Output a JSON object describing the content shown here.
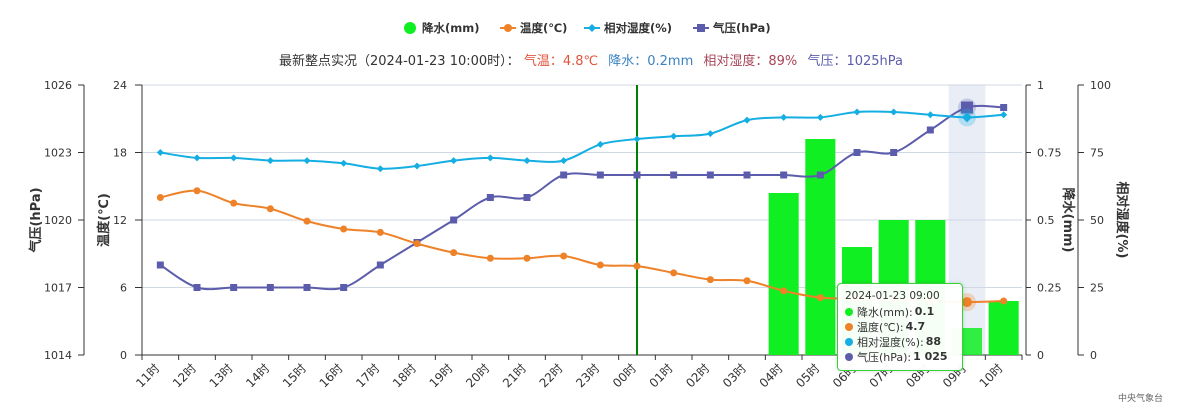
{
  "legend": [
    {
      "label": "降水(mm)",
      "color": "#10ef22",
      "icon": "circle"
    },
    {
      "label": "温度(℃)",
      "color": "#ee8229",
      "icon": "line-circle"
    },
    {
      "label": "相对湿度(%)",
      "color": "#15aee3",
      "icon": "line-diamond"
    },
    {
      "label": "气压(hPa)",
      "color": "#5c5cac",
      "icon": "line-square"
    }
  ],
  "subtitle": {
    "prefix": "最新整点实况（2024-01-23 10:00时）：",
    "temp": "气温：4.8℃",
    "precip": "降水：0.2mm",
    "humidity": "相对湿度：89%",
    "pressure": "气压：1025hPa"
  },
  "colors": {
    "precip": "#10ef22",
    "temp": "#ee8229",
    "humidity": "#15aee3",
    "pressure": "#5c5cac",
    "subtitle_temp": "#e0543c",
    "subtitle_precip": "#3a82c0",
    "subtitle_humidity": "#a84458",
    "subtitle_pressure": "#5c5cac",
    "now_line": "#008000",
    "highlight_band": "#e8edf6"
  },
  "axes": {
    "pressure_label": "气压(hPa)",
    "temp_label": "温度(℃)",
    "precip_label": "降水(mm)",
    "humidity_label": "相对湿度(%)",
    "pressure_ticks": [
      "1014",
      "1017",
      "1020",
      "1023",
      "1026"
    ],
    "temp_ticks": [
      "0",
      "6",
      "12",
      "18",
      "24"
    ],
    "precip_ticks": [
      "0",
      "0.25",
      "0.5",
      "0.75",
      "1"
    ],
    "humidity_ticks": [
      "0",
      "25",
      "50",
      "75",
      "100"
    ]
  },
  "tooltip": {
    "title": "2024-01-23 09:00",
    "rows": [
      {
        "label": "降水(mm):",
        "value": "0.1",
        "color": "#10ef22"
      },
      {
        "label": "温度(℃):",
        "value": "4.7",
        "color": "#ee8229"
      },
      {
        "label": "相对湿度(%):",
        "value": "88",
        "color": "#15aee3"
      },
      {
        "label": "气压(hPa):",
        "value": "1 025",
        "color": "#5c5cac"
      }
    ]
  },
  "source": "中央气象台",
  "chart_data": {
    "type": "line",
    "categories": [
      "11时",
      "12时",
      "13时",
      "14时",
      "15时",
      "16时",
      "17时",
      "18时",
      "19时",
      "20时",
      "21时",
      "22时",
      "23时",
      "00时",
      "01时",
      "02时",
      "03时",
      "04时",
      "05时",
      "06时",
      "07时",
      "08时",
      "09时",
      "10时"
    ],
    "now_category": "00时",
    "highlight_category": "09时",
    "series": [
      {
        "name": "降水(mm)",
        "type": "bar",
        "axis": "precip",
        "range": [
          0,
          1
        ],
        "values": [
          0,
          0,
          0,
          0,
          0,
          0,
          0,
          0,
          0,
          0,
          0,
          0,
          0,
          0,
          0,
          0,
          0,
          0.6,
          0.8,
          0.4,
          0.5,
          0.5,
          0.1,
          0.2
        ]
      },
      {
        "name": "温度(℃)",
        "type": "line",
        "axis": "temp",
        "range": [
          0,
          24
        ],
        "values": [
          14.0,
          14.6,
          13.5,
          13.0,
          11.9,
          11.2,
          10.9,
          9.9,
          9.1,
          8.6,
          8.6,
          8.8,
          8.0,
          7.9,
          7.3,
          6.7,
          6.6,
          5.7,
          5.1,
          5.0,
          4.9,
          4.8,
          4.7,
          4.8
        ]
      },
      {
        "name": "相对湿度(%)",
        "type": "line",
        "axis": "humidity",
        "range": [
          0,
          100
        ],
        "values": [
          75,
          73,
          73,
          72,
          72,
          71,
          69,
          70,
          72,
          73,
          72,
          72,
          78,
          80,
          81,
          82,
          87,
          88,
          88,
          90,
          90,
          89,
          88,
          89
        ]
      },
      {
        "name": "气压(hPa)",
        "type": "line",
        "axis": "pressure",
        "range": [
          1014,
          1026
        ],
        "values": [
          1018,
          1017,
          1017,
          1017,
          1017,
          1017,
          1018,
          1019,
          1020,
          1021,
          1021,
          1022,
          1022,
          1022,
          1022,
          1022,
          1022,
          1022,
          1022,
          1023,
          1023,
          1024,
          1025,
          1025
        ]
      }
    ]
  }
}
